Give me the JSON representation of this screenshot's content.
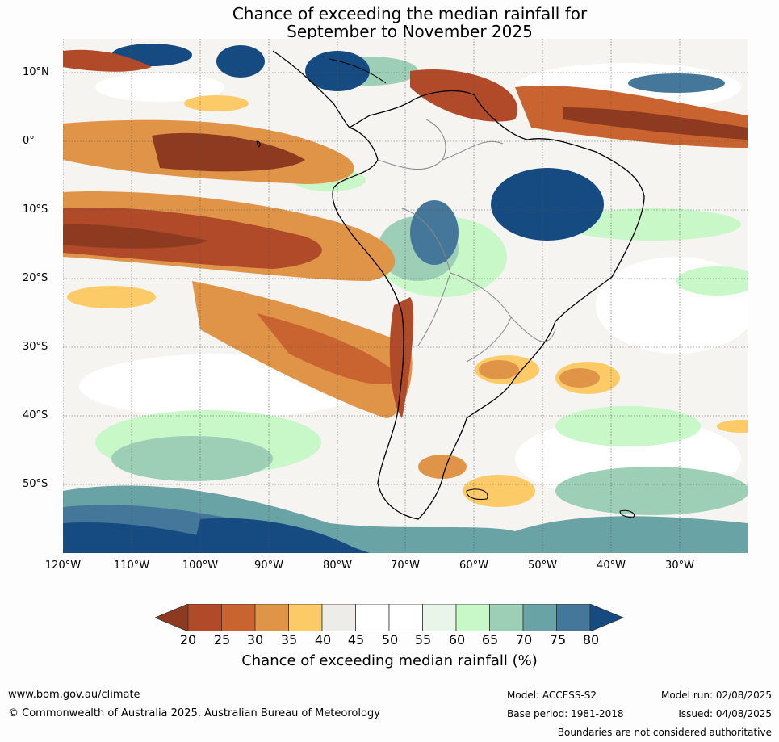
{
  "title_line1": "Chance of exceeding the median rainfall for",
  "title_line2": "September to November 2025",
  "lat_labels": [
    "10°N",
    "0°",
    "10°S",
    "20°S",
    "30°S",
    "40°S",
    "50°S"
  ],
  "lon_labels": [
    "120°W",
    "110°W",
    "100°W",
    "90°W",
    "80°W",
    "70°W",
    "60°W",
    "50°W",
    "40°W",
    "30°W"
  ],
  "colorbar": {
    "ticks": [
      "20",
      "25",
      "30",
      "35",
      "40",
      "45",
      "50",
      "55",
      "60",
      "65",
      "70",
      "75",
      "80"
    ],
    "colors": [
      "#8e3a20",
      "#b04a28",
      "#c96430",
      "#df9448",
      "#fccb67",
      "#eeece8",
      "#ffffff",
      "#ffffff",
      "#e9f5e9",
      "#c8f7c8",
      "#9ccfb6",
      "#6aa3a5",
      "#44779a",
      "#154b80"
    ],
    "label": "Chance of exceeding median rainfall (%)"
  },
  "footer": {
    "url": "www.bom.gov.au/climate",
    "copyright": "© Commonwealth of Australia 2025, Australian Bureau of Meteorology",
    "model": "Model: ACCESS-S2",
    "base_period": "Base period: 1981-2018",
    "model_run": "Model run: 02/08/2025",
    "issued": "Issued: 04/08/2025",
    "disclaimer": "Boundaries are not considered authoritative"
  },
  "colors": {
    "ocean_base": "#ffffff",
    "coast": "#000000",
    "borders": "#888888",
    "grid": "#555555"
  }
}
